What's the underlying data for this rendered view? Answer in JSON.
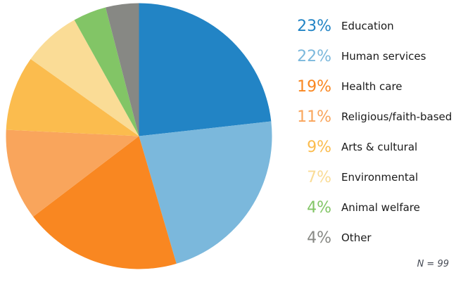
{
  "chart_data": {
    "type": "pie",
    "title": "",
    "categories": [
      "Education",
      "Human services",
      "Health care",
      "Religious/faith-based",
      "Arts & cultural",
      "Environmental",
      "Animal welfare",
      "Other"
    ],
    "values": [
      23,
      22,
      19,
      11,
      9,
      7,
      4,
      4
    ],
    "percent_labels": [
      "23%",
      "22%",
      "19%",
      "11%",
      "9%",
      "7%",
      "4%",
      "4%"
    ],
    "colors": [
      "#2284C5",
      "#7BB8DC",
      "#F98721",
      "#F9A55C",
      "#FBBC4E",
      "#FADC96",
      "#82C566",
      "#878884"
    ],
    "total": 99,
    "start_angle_deg": 0,
    "direction": "clockwise",
    "legend_position": "right",
    "note": "N = 99",
    "label_color": "#1a1a1a",
    "note_color": "#464b55"
  }
}
